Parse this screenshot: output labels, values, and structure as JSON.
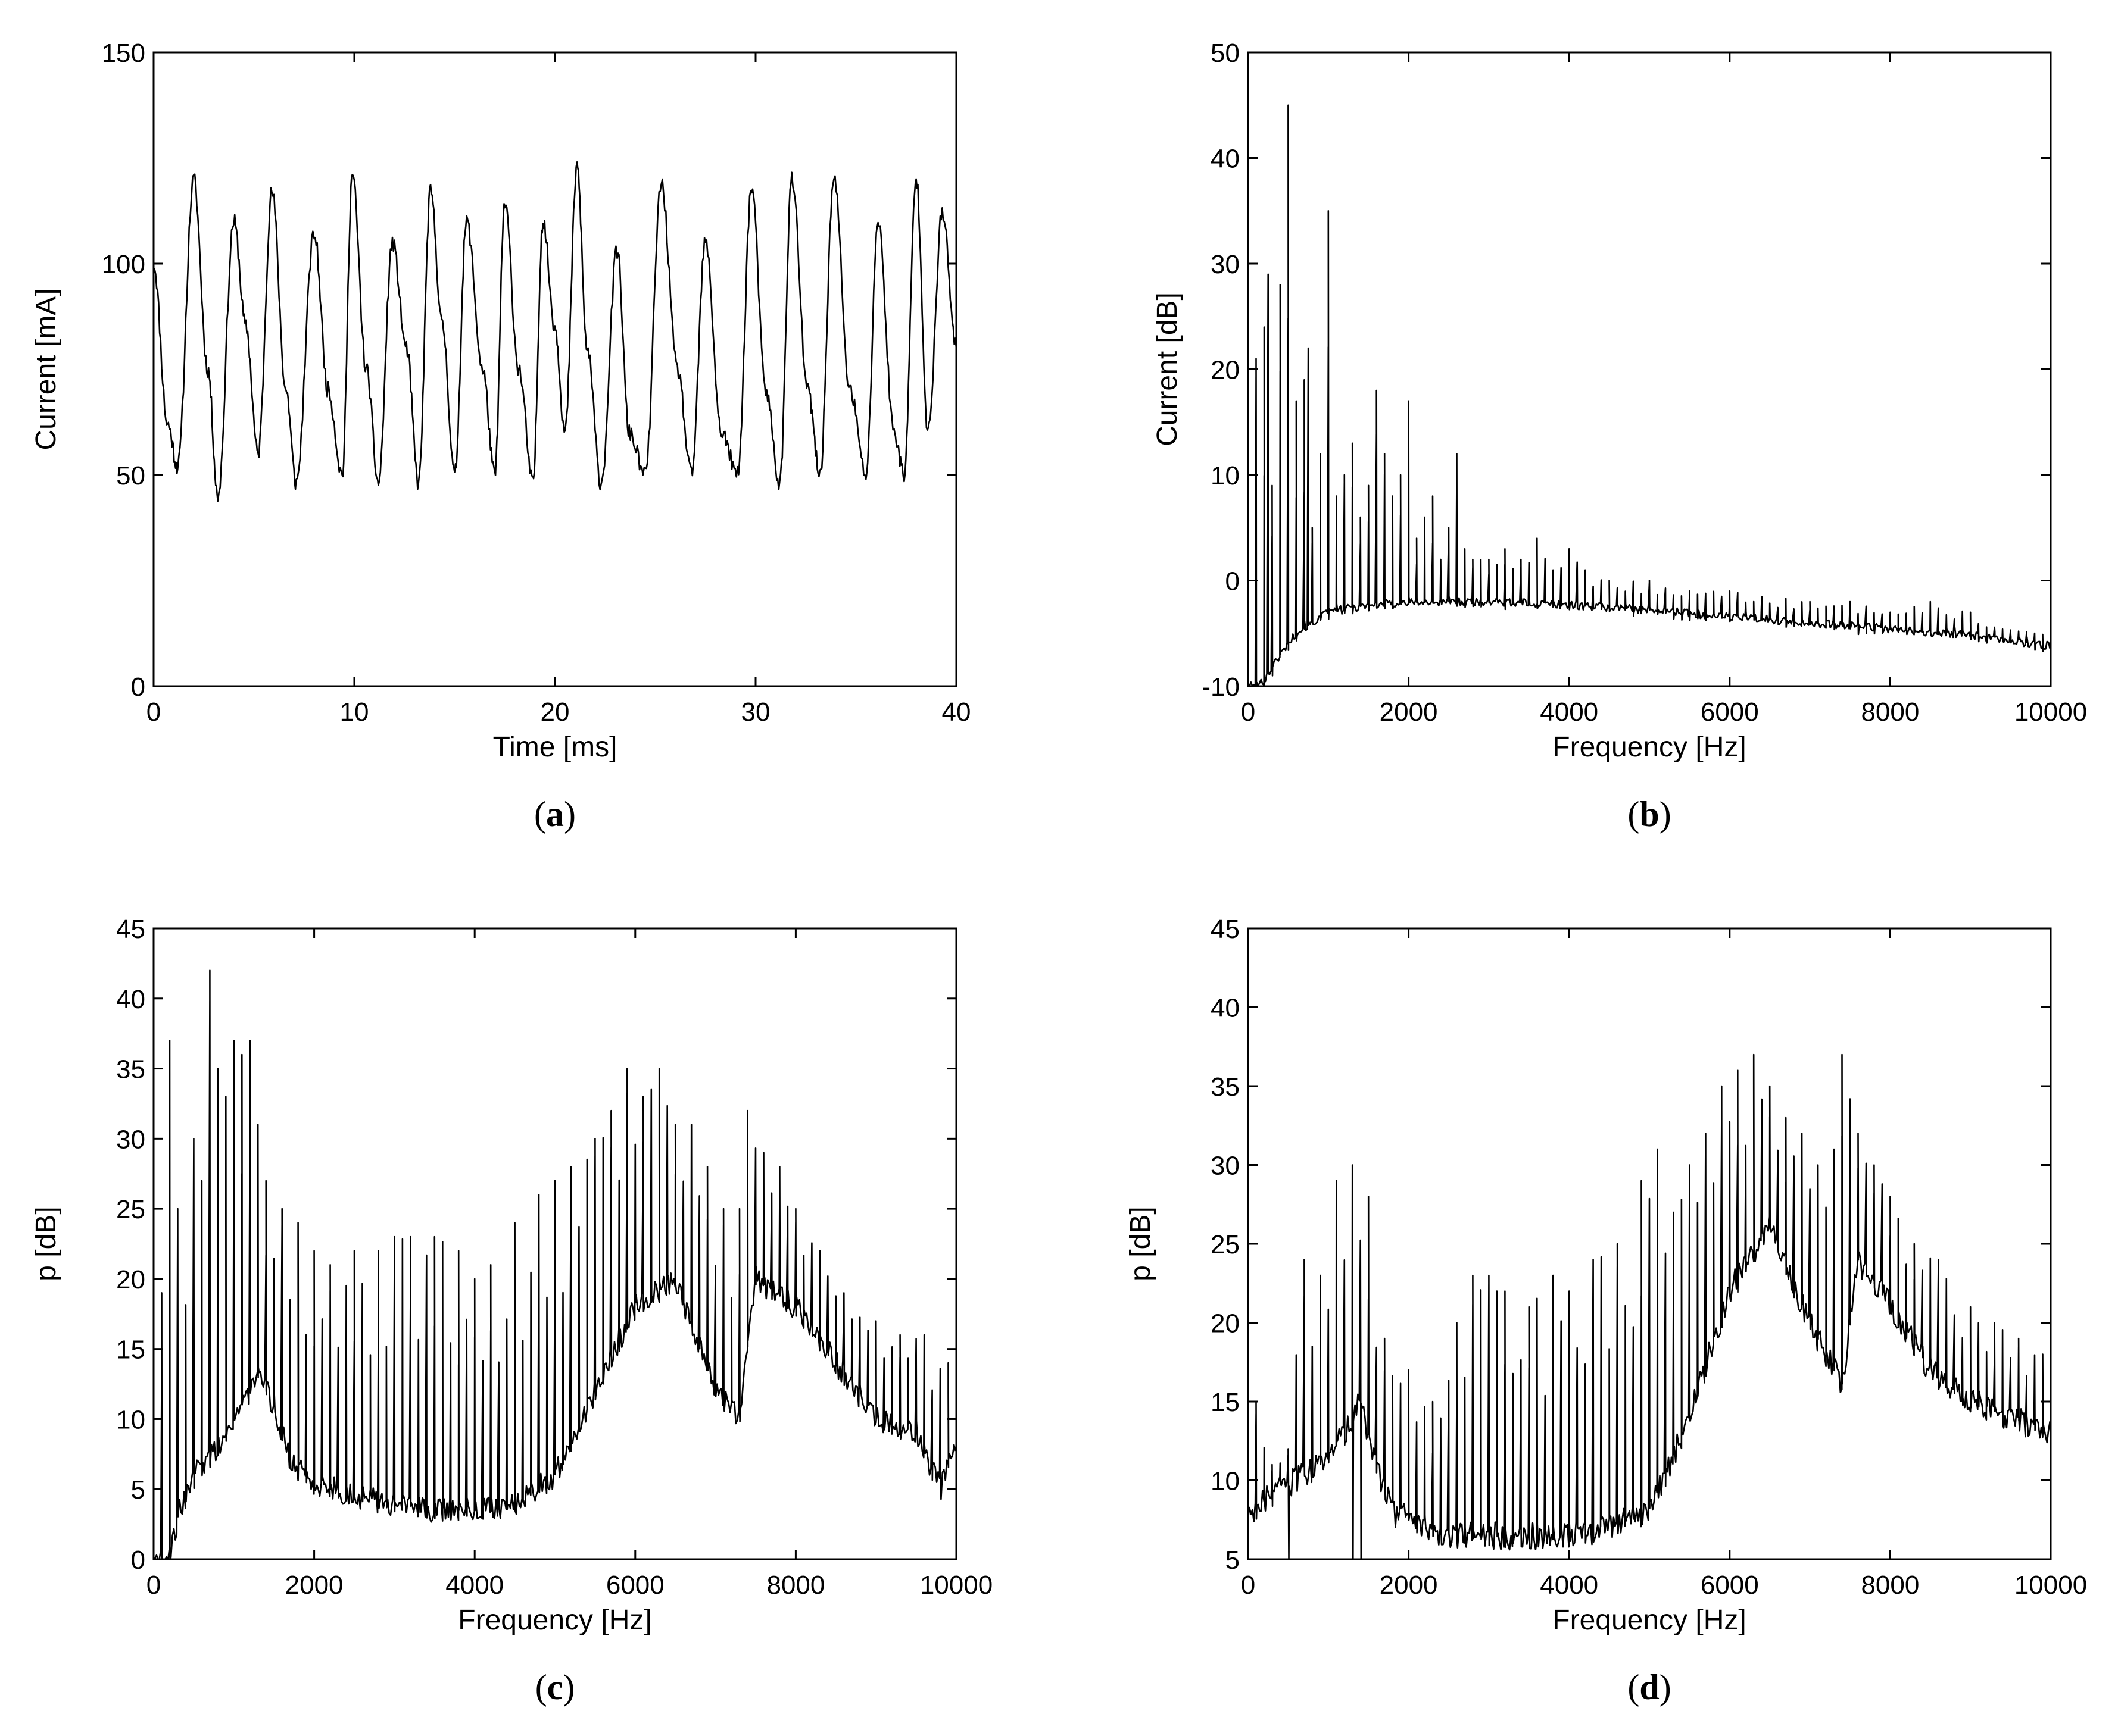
{
  "chart_data": [
    {
      "id": "a",
      "type": "line",
      "panel_label": "a",
      "title": "",
      "xlabel": "Time [ms]",
      "ylabel": "Current [mA]",
      "xlim": [
        0,
        40
      ],
      "ylim": [
        0,
        150
      ],
      "xticks": [
        0,
        10,
        20,
        30,
        40
      ],
      "yticks": [
        0,
        50,
        100,
        150
      ],
      "series": [
        {
          "name": "current",
          "x": [
            0,
            0.7,
            1.2,
            2.0,
            2.7,
            3.2,
            4.0,
            4.6,
            5.2,
            5.9,
            6.6,
            7.1,
            8.0,
            8.7,
            9.4,
            9.9,
            10.6,
            11.2,
            11.9,
            12.6,
            13.2,
            13.8,
            14.4,
            15.0,
            15.6,
            16.4,
            17.0,
            17.5,
            18.2,
            18.9,
            19.4,
            20.0,
            20.5,
            21.1,
            21.6,
            22.3,
            23.1,
            23.7,
            24.5,
            25.3,
            26.1,
            26.8,
            27.5,
            28.3,
            29.1,
            29.8,
            30.5,
            31.2,
            31.8,
            32.6,
            33.2,
            33.9,
            34.7,
            35.5,
            36.1,
            36.9,
            37.4,
            38.0,
            38.6,
            39.3,
            40.0
          ],
          "y": [
            100,
            62,
            52,
            120,
            75,
            45,
            110,
            85,
            55,
            117,
            70,
            48,
            107,
            70,
            50,
            121,
            75,
            48,
            105,
            80,
            48,
            117,
            85,
            50,
            110,
            75,
            50,
            114,
            75,
            48,
            110,
            85,
            60,
            123,
            80,
            48,
            103,
            60,
            50,
            119,
            75,
            50,
            105,
            60,
            50,
            118,
            70,
            48,
            120,
            70,
            50,
            120,
            70,
            50,
            110,
            60,
            50,
            120,
            60,
            112,
            80
          ]
        }
      ]
    },
    {
      "id": "b",
      "type": "line",
      "panel_label": "b",
      "title": "",
      "xlabel": "Frequency [Hz]",
      "ylabel": "Current [dB]",
      "xlim": [
        0,
        10000
      ],
      "ylim": [
        -10,
        50
      ],
      "xticks": [
        0,
        2000,
        4000,
        6000,
        8000,
        10000
      ],
      "yticks": [
        -10,
        0,
        10,
        20,
        30,
        40,
        50
      ],
      "baseline": {
        "x": [
          0,
          100,
          200,
          400,
          600,
          800,
          1000,
          1500,
          2000,
          2500,
          3000,
          4000,
          5000,
          6000,
          7000,
          8000,
          9000,
          10000
        ],
        "y": [
          -10,
          -10,
          -9.5,
          -7,
          -5,
          -4,
          -3,
          -2.3,
          -2.1,
          -2.0,
          -2.0,
          -2.3,
          -2.8,
          -3.4,
          -4.0,
          -4.6,
          -5.2,
          -6.2
        ]
      },
      "peaks": {
        "x": [
          100,
          200,
          250,
          300,
          400,
          500,
          600,
          700,
          750,
          800,
          900,
          1000,
          1100,
          1200,
          1300,
          1400,
          1500,
          1600,
          1700,
          1800,
          1900,
          2000,
          2100,
          2200,
          2300,
          2400,
          2500,
          2600,
          2700,
          2800,
          3000,
          3200,
          3400,
          3600,
          3800,
          4000,
          4200,
          4500,
          5000,
          5500,
          6000,
          7000,
          7500,
          8000,
          8500,
          9000,
          9500
        ],
        "y": [
          21,
          24,
          29,
          9,
          28,
          45,
          17,
          19,
          22,
          5,
          12,
          35,
          8,
          10,
          13,
          6,
          9,
          18,
          12,
          8,
          10,
          17,
          4,
          6,
          8,
          2,
          5,
          12,
          3,
          2,
          2,
          3,
          2,
          4,
          1,
          3,
          1,
          0,
          0,
          -1,
          -1,
          -2,
          -2,
          -3,
          -2,
          -3,
          -5
        ]
      }
    },
    {
      "id": "c",
      "type": "line",
      "panel_label": "c",
      "title": "",
      "xlabel": "Frequency [Hz]",
      "ylabel": "p [dB]",
      "xlim": [
        0,
        10000
      ],
      "ylim": [
        0,
        45
      ],
      "xticks": [
        0,
        2000,
        4000,
        6000,
        8000,
        10000
      ],
      "yticks": [
        0,
        5,
        10,
        15,
        20,
        25,
        30,
        35,
        40,
        45
      ],
      "baseline": {
        "x": [
          0,
          200,
          300,
          500,
          800,
          1000,
          1300,
          1500,
          1700,
          2000,
          2500,
          3000,
          3500,
          4000,
          4500,
          5000,
          5500,
          6000,
          6500,
          7000,
          7300,
          7500,
          8000,
          8500,
          9000,
          9500,
          9800,
          10000
        ],
        "y": [
          0,
          0,
          3,
          6,
          8,
          10,
          13,
          11,
          7,
          5.5,
          4.5,
          4,
          3.5,
          3.5,
          4,
          6,
          12,
          18,
          20,
          12,
          10,
          20,
          18,
          14,
          10,
          9,
          5,
          8
        ]
      },
      "peaks": {
        "x": [
          100,
          200,
          300,
          500,
          600,
          700,
          800,
          900,
          1000,
          1100,
          1200,
          1300,
          1400,
          1600,
          1800,
          2000,
          2200,
          2500,
          2800,
          3000,
          3200,
          3500,
          3800,
          4000,
          4200,
          4500,
          4800,
          5000,
          5200,
          5500,
          5700,
          5900,
          6100,
          6300,
          6500,
          6700,
          6900,
          7100,
          7300,
          7400,
          7600,
          7800,
          8000,
          8300,
          8600,
          9000,
          9300,
          9600,
          9900
        ],
        "y": [
          19,
          37,
          25,
          30,
          27,
          42,
          35,
          33,
          37,
          36,
          37,
          31,
          27,
          25,
          24,
          22,
          21,
          22,
          22,
          23,
          23,
          23,
          22,
          20,
          21,
          24,
          26,
          27,
          28,
          30,
          32,
          35,
          33,
          35,
          31,
          31,
          28,
          25,
          25,
          32,
          29,
          28,
          25,
          22,
          19,
          17,
          16,
          16,
          14
        ]
      }
    },
    {
      "id": "d",
      "type": "line",
      "panel_label": "d",
      "title": "",
      "xlabel": "Frequency [Hz]",
      "ylabel": "p [dB]",
      "xlim": [
        0,
        10000
      ],
      "ylim": [
        5,
        45
      ],
      "xticks": [
        0,
        2000,
        4000,
        6000,
        8000,
        10000
      ],
      "yticks": [
        5,
        10,
        15,
        20,
        25,
        30,
        35,
        40,
        45
      ],
      "baseline": {
        "x": [
          0,
          300,
          600,
          900,
          1200,
          1400,
          1600,
          1800,
          2000,
          2500,
          3000,
          3500,
          4000,
          4500,
          5000,
          5500,
          6000,
          6500,
          7000,
          7400,
          7600,
          8000,
          8500,
          9000,
          9500,
          10000
        ],
        "y": [
          8,
          9,
          10,
          11,
          13,
          15,
          11,
          8,
          7.5,
          6.5,
          6.5,
          6.5,
          6.5,
          7,
          8,
          14,
          22,
          26,
          20,
          16,
          24,
          21,
          17,
          15,
          14,
          13
        ]
      },
      "peaks": {
        "x": [
          100,
          300,
          500,
          700,
          900,
          1100,
          1300,
          1500,
          1700,
          2000,
          2300,
          2600,
          2800,
          3000,
          3200,
          3500,
          3800,
          4000,
          4300,
          4600,
          4900,
          5100,
          5300,
          5500,
          5700,
          5900,
          6100,
          6300,
          6500,
          6700,
          6900,
          7100,
          7300,
          7400,
          7600,
          7800,
          8000,
          8300,
          8600,
          9000,
          9300,
          9600,
          9900
        ],
        "y": [
          15,
          11,
          12,
          24,
          23,
          29,
          30,
          28,
          19,
          17,
          15,
          20,
          23,
          23,
          22,
          21,
          23,
          22,
          24,
          25,
          29,
          31,
          27,
          30,
          32,
          35,
          36,
          37,
          35,
          33,
          32,
          30,
          31,
          37,
          32,
          30,
          28,
          25,
          24,
          21,
          20,
          19,
          18
        ]
      }
    }
  ]
}
